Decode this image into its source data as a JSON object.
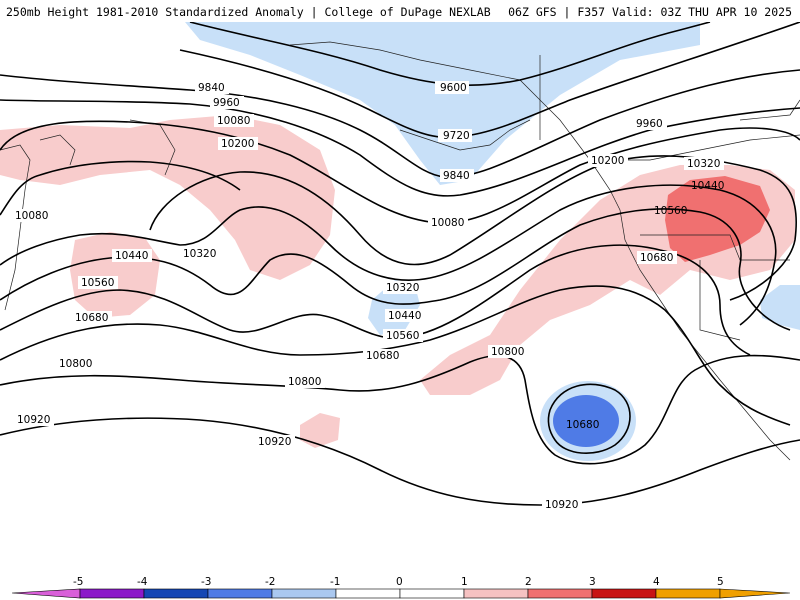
{
  "header": {
    "left": "250mb Height 1981-2010 Standardized Anomaly | College of DuPage NEXLAB",
    "right": "06Z GFS | F357 Valid: 03Z THU APR 10 2025"
  },
  "contour_labels": [
    "9600",
    "9720",
    "9840",
    "9960",
    "10080",
    "10200",
    "10320",
    "10440",
    "10560",
    "10680",
    "10800",
    "10920"
  ],
  "colorbar": {
    "ticks": [
      "-5",
      "-4",
      "-3",
      "-2",
      "-1",
      "0",
      "1",
      "2",
      "3",
      "4",
      "5"
    ],
    "colors": [
      "#d95fd9",
      "#8b19c9",
      "#1446b4",
      "#4f7be6",
      "#aac8f0",
      "#ffffff",
      "#ffffff",
      "#f6c2c2",
      "#f07070",
      "#c81414",
      "#f0a000"
    ]
  }
}
